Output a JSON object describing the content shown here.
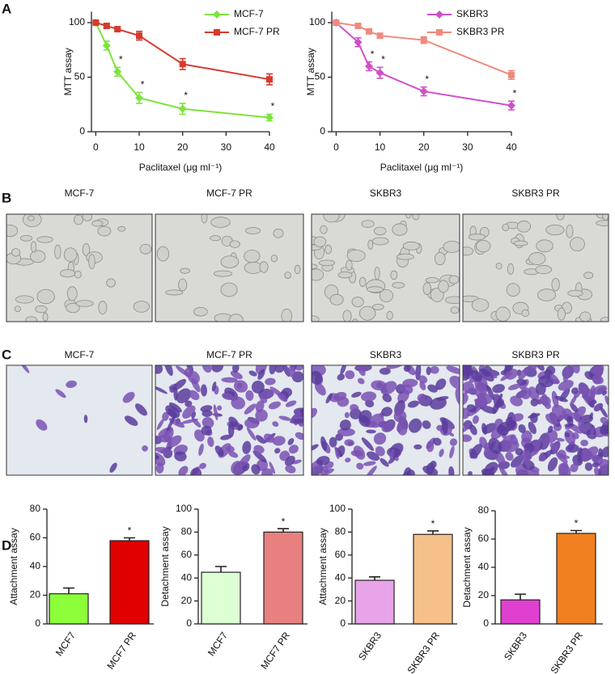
{
  "figure": {
    "panel_labels": [
      "A",
      "B",
      "C",
      "D"
    ],
    "micrograph_rows": [
      [
        "MCF-7",
        "MCF-7 PR",
        "SKBR3",
        "SKBR3 PR"
      ],
      [
        "MCF-7",
        "MCF-7 PR",
        "SKBR3",
        "SKBR3 PR"
      ]
    ]
  },
  "chart_data": [
    {
      "type": "line",
      "x": [
        0,
        2.5,
        5,
        10,
        20,
        40
      ],
      "xlim": [
        -1,
        40
      ],
      "xticks": [
        0,
        10,
        20,
        30,
        40
      ],
      "ylim": [
        0,
        110
      ],
      "yticks": [
        0,
        50,
        100
      ],
      "xlabel": "Paclitaxel (μg ml⁻¹)",
      "ylabel": "MTT assay",
      "series": [
        {
          "name": "MCF-7",
          "color": "#7ee33c",
          "marker": "diamond",
          "values": [
            100,
            79,
            55,
            31,
            21,
            13
          ],
          "errors": [
            0,
            4,
            4,
            5,
            5,
            3
          ],
          "significance": [
            null,
            null,
            "*",
            "*",
            "*",
            "*"
          ]
        },
        {
          "name": "MCF-7 PR",
          "color": "#d63a2e",
          "marker": "square",
          "values": [
            100,
            97,
            94,
            88,
            62,
            48
          ],
          "errors": [
            0,
            2,
            2,
            4,
            5,
            5
          ],
          "significance": [
            null,
            null,
            null,
            null,
            null,
            null
          ]
        }
      ]
    },
    {
      "type": "line",
      "x": [
        0,
        5,
        7.5,
        10,
        20,
        40
      ],
      "xlim": [
        -1,
        40
      ],
      "xticks": [
        0,
        10,
        20,
        30,
        40
      ],
      "ylim": [
        0,
        110
      ],
      "yticks": [
        0,
        50,
        100
      ],
      "xlabel": "Paclitaxel (μg ml⁻¹)",
      "ylabel": "MTT assay",
      "series": [
        {
          "name": "SKBR3",
          "color": "#d04fc9",
          "marker": "diamond",
          "values": [
            100,
            82,
            60,
            54,
            37,
            24
          ],
          "errors": [
            0,
            4,
            4,
            5,
            4,
            4
          ],
          "significance": [
            null,
            null,
            "*",
            "*",
            "*",
            "*"
          ]
        },
        {
          "name": "SKBR3 PR",
          "color": "#ef8a7e",
          "marker": "square",
          "values": [
            100,
            97,
            92,
            88,
            84,
            52
          ],
          "errors": [
            0,
            2,
            2,
            2,
            3,
            4
          ],
          "significance": [
            null,
            null,
            null,
            null,
            null,
            null
          ]
        }
      ]
    },
    {
      "type": "bar",
      "categories": [
        "MCF7",
        "MCF7 PR"
      ],
      "values": [
        21,
        58
      ],
      "errors": [
        4,
        2
      ],
      "colors": [
        "#8cff3a",
        "#e00000"
      ],
      "significance": [
        null,
        "*"
      ],
      "ylim": [
        0,
        80
      ],
      "yticks": [
        0,
        20,
        40,
        60,
        80
      ],
      "ylabel": "Attachment assay"
    },
    {
      "type": "bar",
      "categories": [
        "MCF7",
        "MCF7 PR"
      ],
      "values": [
        45,
        80
      ],
      "errors": [
        5,
        3
      ],
      "colors": [
        "#dcffd4",
        "#e88080"
      ],
      "significance": [
        null,
        "*"
      ],
      "ylim": [
        0,
        100
      ],
      "yticks": [
        0,
        20,
        40,
        60,
        80,
        100
      ],
      "ylabel": "Detachment assay"
    },
    {
      "type": "bar",
      "categories": [
        "SKBR3",
        "SKBR3 PR"
      ],
      "values": [
        38,
        78
      ],
      "errors": [
        3,
        3
      ],
      "colors": [
        "#e8a4e8",
        "#f5c08a"
      ],
      "significance": [
        null,
        "*"
      ],
      "ylim": [
        0,
        100
      ],
      "yticks": [
        0,
        20,
        40,
        60,
        80,
        100
      ],
      "ylabel": "Attachment assay"
    },
    {
      "type": "bar",
      "categories": [
        "SKBR3",
        "SKBR3 PR"
      ],
      "values": [
        17,
        64
      ],
      "errors": [
        4,
        2
      ],
      "colors": [
        "#e040d0",
        "#f08020"
      ],
      "significance": [
        null,
        "*"
      ],
      "ylim": [
        0,
        80
      ],
      "yticks": [
        0,
        20,
        40,
        60,
        80
      ],
      "ylabel": "Detachment assay"
    }
  ]
}
